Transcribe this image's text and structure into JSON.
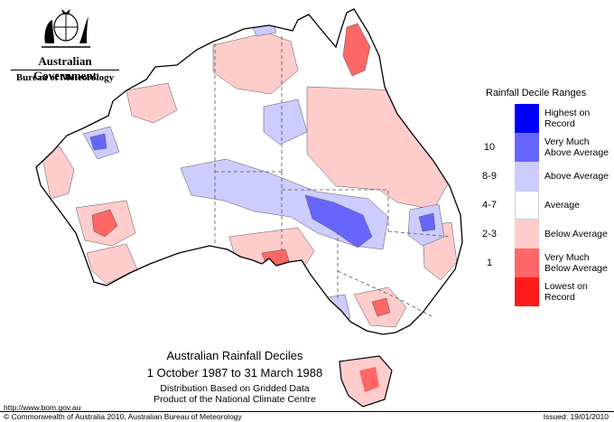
{
  "branding": {
    "government": "Australian Government",
    "bureau": "Bureau of Meteorology"
  },
  "legend": {
    "title": "Rainfall Decile Ranges",
    "items": [
      {
        "code": "",
        "label": "Highest on Record",
        "color": "#0000ff"
      },
      {
        "code": "10",
        "label": "Very Much Above Average",
        "color": "#6666ff"
      },
      {
        "code": "8-9",
        "label": "Above Average",
        "color": "#ccccff"
      },
      {
        "code": "4-7",
        "label": "Average",
        "color": "#ffffff"
      },
      {
        "code": "2-3",
        "label": "Below Average",
        "color": "#ffcccc"
      },
      {
        "code": "1",
        "label": "Very Much Below Average",
        "color": "#ff6666"
      },
      {
        "code": "",
        "label": "Lowest on Record",
        "color": "#ff1a1a"
      }
    ]
  },
  "caption": {
    "title": "Australian Rainfall Deciles",
    "period": "1 October 1987 to 31 March 1988",
    "line1": "Distribution Based on Gridded Data",
    "line2": "Product of the National Climate Centre"
  },
  "footer": {
    "url": "http://www.bom.gov.au",
    "copyright": "© Commonwealth of Australia 2010, Australian Bureau of Meteorology",
    "issued": "Issued: 19/01/2010"
  }
}
